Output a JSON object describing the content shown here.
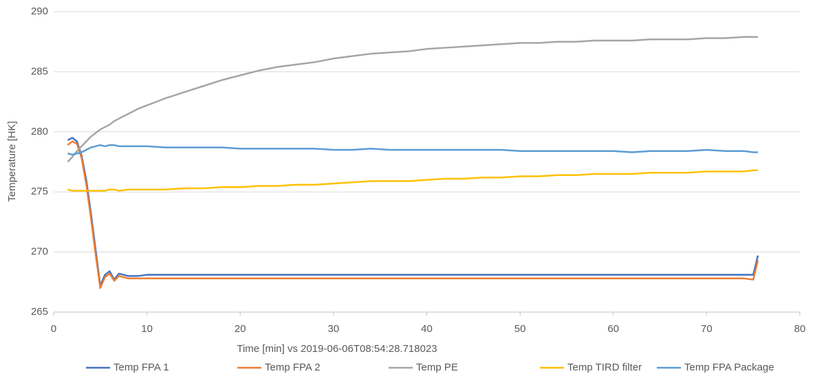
{
  "chart_data": {
    "type": "line",
    "x_label": "Time [min] vs  2019-06-06T08:54:28.718023",
    "y_label": "Temperature [HK]",
    "xlim": [
      0,
      80
    ],
    "xticks": [
      0,
      10,
      20,
      30,
      40,
      50,
      60,
      70,
      80
    ],
    "ylim": [
      265,
      290
    ],
    "yticks": [
      265,
      270,
      275,
      280,
      285,
      290
    ],
    "grid": true,
    "legend": "bottom",
    "x": [
      1.5,
      2,
      2.5,
      3,
      3.5,
      4,
      4.5,
      5,
      5.5,
      6,
      6.5,
      7,
      8,
      9,
      10,
      12,
      14,
      16,
      18,
      20,
      22,
      24,
      26,
      28,
      30,
      32,
      34,
      36,
      38,
      40,
      42,
      44,
      46,
      48,
      50,
      52,
      54,
      56,
      58,
      60,
      62,
      64,
      66,
      68,
      70,
      72,
      74,
      75,
      75.5
    ],
    "series": [
      {
        "name": "Temp FPA 1",
        "color": "#4472c4",
        "values": [
          279.3,
          279.5,
          279.2,
          278,
          276,
          273.2,
          270.2,
          267.2,
          268.1,
          268.4,
          267.7,
          268.2,
          268.0,
          268.0,
          268.1,
          268.1,
          268.1,
          268.1,
          268.1,
          268.1,
          268.1,
          268.1,
          268.1,
          268.1,
          268.1,
          268.1,
          268.1,
          268.1,
          268.1,
          268.1,
          268.1,
          268.1,
          268.1,
          268.1,
          268.1,
          268.1,
          268.1,
          268.1,
          268.1,
          268.1,
          268.1,
          268.1,
          268.1,
          268.1,
          268.1,
          268.1,
          268.1,
          268.1,
          269.7
        ]
      },
      {
        "name": "Temp FPA 2",
        "color": "#ed7d31",
        "values": [
          278.9,
          279.2,
          279.0,
          277.8,
          275.6,
          272.8,
          269.8,
          267.0,
          267.9,
          268.2,
          267.6,
          268.0,
          267.8,
          267.8,
          267.8,
          267.8,
          267.8,
          267.8,
          267.8,
          267.8,
          267.8,
          267.8,
          267.8,
          267.8,
          267.8,
          267.8,
          267.8,
          267.8,
          267.8,
          267.8,
          267.8,
          267.8,
          267.8,
          267.8,
          267.8,
          267.8,
          267.8,
          267.8,
          267.8,
          267.8,
          267.8,
          267.8,
          267.8,
          267.8,
          267.8,
          267.8,
          267.8,
          267.7,
          269.3
        ]
      },
      {
        "name": "Temp PE",
        "color": "#a5a5a5",
        "values": [
          277.5,
          277.9,
          278.4,
          278.8,
          279.2,
          279.6,
          279.9,
          280.2,
          280.4,
          280.6,
          280.9,
          281.1,
          281.5,
          281.9,
          282.2,
          282.8,
          283.3,
          283.8,
          284.3,
          284.7,
          285.1,
          285.4,
          285.6,
          285.8,
          286.1,
          286.3,
          286.5,
          286.6,
          286.7,
          286.9,
          287.0,
          287.1,
          287.2,
          287.3,
          287.4,
          287.4,
          287.5,
          287.5,
          287.6,
          287.6,
          287.6,
          287.7,
          287.7,
          287.7,
          287.8,
          287.8,
          287.9,
          287.9,
          287.9
        ]
      },
      {
        "name": "Temp TIRD filter",
        "color": "#ffc000",
        "values": [
          275.2,
          275.1,
          275.1,
          275.1,
          275.1,
          275.1,
          275.1,
          275.1,
          275.1,
          275.2,
          275.2,
          275.1,
          275.2,
          275.2,
          275.2,
          275.2,
          275.3,
          275.3,
          275.4,
          275.4,
          275.5,
          275.5,
          275.6,
          275.6,
          275.7,
          275.8,
          275.9,
          275.9,
          275.9,
          276.0,
          276.1,
          276.1,
          276.2,
          276.2,
          276.3,
          276.3,
          276.4,
          276.4,
          276.5,
          276.5,
          276.5,
          276.6,
          276.6,
          276.6,
          276.7,
          276.7,
          276.7,
          276.8,
          276.8
        ]
      },
      {
        "name": "Temp FPA Package",
        "color": "#5b9bd5",
        "values": [
          278.2,
          278.1,
          278.2,
          278.3,
          278.5,
          278.7,
          278.8,
          278.9,
          278.8,
          278.9,
          278.9,
          278.8,
          278.8,
          278.8,
          278.8,
          278.7,
          278.7,
          278.7,
          278.7,
          278.6,
          278.6,
          278.6,
          278.6,
          278.6,
          278.5,
          278.5,
          278.6,
          278.5,
          278.5,
          278.5,
          278.5,
          278.5,
          278.5,
          278.5,
          278.4,
          278.4,
          278.4,
          278.4,
          278.4,
          278.4,
          278.3,
          278.4,
          278.4,
          278.4,
          278.5,
          278.4,
          278.4,
          278.3,
          278.3
        ]
      }
    ]
  }
}
